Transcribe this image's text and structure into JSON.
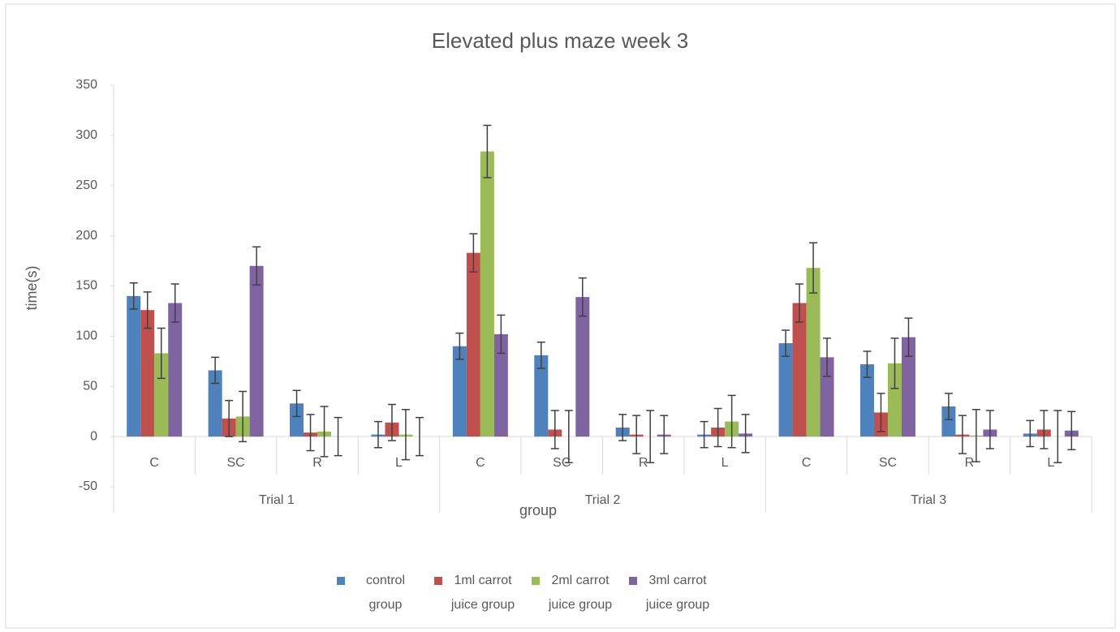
{
  "chart_data": {
    "type": "bar",
    "title": "Elevated plus maze week 3",
    "y_label": "time(s)",
    "x_label": "group",
    "categories": [
      "C",
      "SC",
      "R",
      "L",
      "C",
      "SC",
      "R",
      "L",
      "C",
      "SC",
      "R",
      "L"
    ],
    "groups": [
      "Trial 1",
      "Trial 2",
      "Trial 3"
    ],
    "series": [
      {
        "name": "control group",
        "color": "#4f81bd",
        "values": [
          140,
          66,
          33,
          2,
          90,
          81,
          9,
          2,
          93,
          72,
          30,
          3
        ],
        "errors": [
          13,
          13,
          13,
          13,
          13,
          13,
          13,
          13,
          13,
          13,
          13,
          13
        ]
      },
      {
        "name": "1ml carrot juice group",
        "color": "#c0504d",
        "values": [
          126,
          18,
          4,
          14,
          183,
          7,
          2,
          9,
          133,
          24,
          2,
          7
        ],
        "errors": [
          18,
          18,
          18,
          18,
          19,
          19,
          19,
          19,
          19,
          19,
          19,
          19
        ]
      },
      {
        "name": "2ml carrot juice group",
        "color": "#9bbb59",
        "values": [
          83,
          20,
          5,
          2,
          284,
          0,
          0,
          15,
          168,
          73,
          1,
          0
        ],
        "errors": [
          25,
          25,
          25,
          25,
          26,
          26,
          26,
          26,
          25,
          25,
          26,
          26
        ]
      },
      {
        "name": "3ml carrot juice group",
        "color": "#8064a2",
        "values": [
          133,
          170,
          0,
          0,
          102,
          139,
          2,
          3,
          79,
          99,
          7,
          6
        ],
        "errors": [
          19,
          19,
          19,
          19,
          19,
          19,
          19,
          19,
          19,
          19,
          19,
          19
        ]
      }
    ],
    "ylim": [
      -50,
      350
    ],
    "yticks": [
      -50,
      0,
      50,
      100,
      150,
      200,
      250,
      300,
      350
    ],
    "legend": "bottom"
  }
}
